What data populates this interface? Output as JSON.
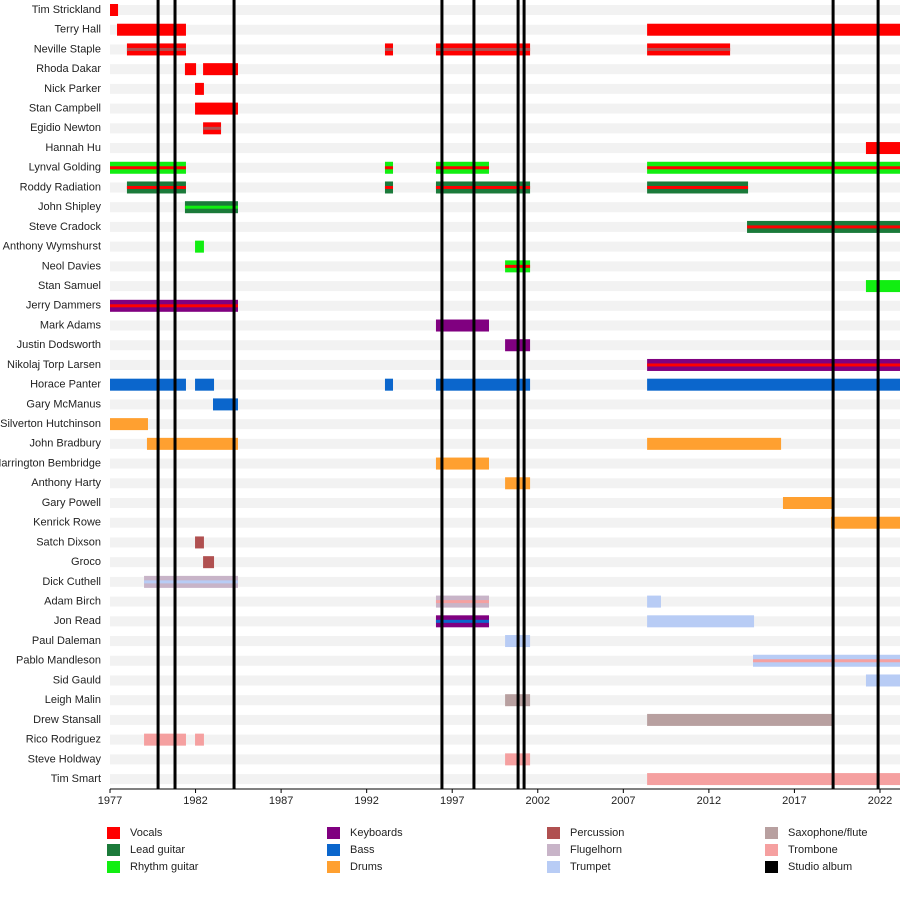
{
  "chart_data": {
    "type": "timeline",
    "xlim": [
      1977,
      2023.17
    ],
    "xticks": [
      1977,
      1982,
      1987,
      1992,
      1997,
      2002,
      2007,
      2012,
      2017,
      2022
    ],
    "legend": [
      {
        "name": "Vocals",
        "color": "#ff0000"
      },
      {
        "name": "Lead guitar",
        "color": "#1b7a3a"
      },
      {
        "name": "Rhythm guitar",
        "color": "#11ee11"
      },
      {
        "name": "Keyboards",
        "color": "#800080"
      },
      {
        "name": "Bass",
        "color": "#0b66cc"
      },
      {
        "name": "Drums",
        "color": "#ffa030"
      },
      {
        "name": "Percussion",
        "color": "#b05050"
      },
      {
        "name": "Flugelhorn",
        "color": "#c8b4c8"
      },
      {
        "name": "Trumpet",
        "color": "#b8ccf5"
      },
      {
        "name": "Saxophone/flute",
        "color": "#b8a0a0"
      },
      {
        "name": "Trombone",
        "color": "#f5a0a0"
      },
      {
        "name": "Studio album",
        "color": "#000000"
      }
    ],
    "albums": [
      1979.81,
      1980.8,
      1984.25,
      1996.4,
      1998.27,
      2000.85,
      2001.2,
      2019.26,
      2021.89
    ],
    "members": [
      {
        "name": "Tim Strickland",
        "periods": [
          {
            "start": 1977.0,
            "end": 1977.47,
            "roles": [
              "Vocals"
            ]
          }
        ]
      },
      {
        "name": "Terry Hall",
        "periods": [
          {
            "start": 1977.41,
            "end": 1981.44,
            "roles": [
              "Vocals"
            ]
          },
          {
            "start": 2008.39,
            "end": 2023.17,
            "roles": [
              "Vocals"
            ]
          }
        ]
      },
      {
        "name": "Neville Staple",
        "periods": [
          {
            "start": 1977.99,
            "end": 1981.44,
            "roles": [
              "Vocals",
              "Percussion"
            ]
          },
          {
            "start": 1993.07,
            "end": 1993.54,
            "roles": [
              "Vocals",
              "Percussion"
            ]
          },
          {
            "start": 1996.05,
            "end": 2001.55,
            "roles": [
              "Vocals",
              "Percussion"
            ]
          },
          {
            "start": 2008.39,
            "end": 2013.24,
            "roles": [
              "Vocals",
              "Percussion"
            ]
          }
        ]
      },
      {
        "name": "Rhoda Dakar",
        "periods": [
          {
            "start": 1981.38,
            "end": 1982.03,
            "roles": [
              "Vocals"
            ]
          },
          {
            "start": 1982.44,
            "end": 1984.48,
            "roles": [
              "Vocals"
            ]
          }
        ]
      },
      {
        "name": "Nick Parker",
        "periods": [
          {
            "start": 1981.97,
            "end": 1982.49,
            "roles": [
              "Vocals"
            ]
          }
        ]
      },
      {
        "name": "Stan Campbell",
        "periods": [
          {
            "start": 1981.97,
            "end": 1984.48,
            "roles": [
              "Vocals"
            ]
          }
        ]
      },
      {
        "name": "Egidio Newton",
        "periods": [
          {
            "start": 1982.44,
            "end": 1983.49,
            "roles": [
              "Vocals",
              "Percussion"
            ]
          }
        ]
      },
      {
        "name": "Hannah Hu",
        "periods": [
          {
            "start": 2021.18,
            "end": 2023.17,
            "roles": [
              "Vocals"
            ]
          }
        ]
      },
      {
        "name": "Lynval Golding",
        "periods": [
          {
            "start": 1977.0,
            "end": 1981.44,
            "roles": [
              "Rhythm guitar",
              "Vocals"
            ]
          },
          {
            "start": 1993.07,
            "end": 1993.54,
            "roles": [
              "Rhythm guitar",
              "Vocals"
            ]
          },
          {
            "start": 1996.05,
            "end": 1999.15,
            "roles": [
              "Rhythm guitar",
              "Vocals"
            ]
          },
          {
            "start": 2008.39,
            "end": 2023.17,
            "roles": [
              "Rhythm guitar",
              "Vocals"
            ]
          }
        ]
      },
      {
        "name": "Roddy Radiation",
        "periods": [
          {
            "start": 1977.99,
            "end": 1981.44,
            "roles": [
              "Lead guitar",
              "Vocals"
            ]
          },
          {
            "start": 1993.07,
            "end": 1993.54,
            "roles": [
              "Lead guitar",
              "Vocals"
            ]
          },
          {
            "start": 1996.05,
            "end": 2001.55,
            "roles": [
              "Lead guitar",
              "Vocals"
            ]
          },
          {
            "start": 2008.39,
            "end": 2014.29,
            "roles": [
              "Lead guitar",
              "Vocals"
            ]
          }
        ]
      },
      {
        "name": "John Shipley",
        "periods": [
          {
            "start": 1981.38,
            "end": 1984.48,
            "roles": [
              "Lead guitar",
              "Rhythm guitar"
            ]
          }
        ]
      },
      {
        "name": "Steve Cradock",
        "periods": [
          {
            "start": 2014.23,
            "end": 2023.17,
            "roles": [
              "Lead guitar",
              "Vocals"
            ]
          }
        ]
      },
      {
        "name": "Anthony Wymshurst",
        "periods": [
          {
            "start": 1981.97,
            "end": 1982.49,
            "roles": [
              "Rhythm guitar"
            ]
          }
        ]
      },
      {
        "name": "Neol Davies",
        "periods": [
          {
            "start": 2000.09,
            "end": 2001.55,
            "roles": [
              "Rhythm guitar",
              "Vocals"
            ]
          }
        ]
      },
      {
        "name": "Stan Samuel",
        "periods": [
          {
            "start": 2021.18,
            "end": 2023.17,
            "roles": [
              "Rhythm guitar"
            ]
          }
        ]
      },
      {
        "name": "Jerry Dammers",
        "periods": [
          {
            "start": 1977.0,
            "end": 1984.48,
            "roles": [
              "Keyboards",
              "Vocals"
            ]
          }
        ]
      },
      {
        "name": "Mark Adams",
        "periods": [
          {
            "start": 1996.05,
            "end": 1999.15,
            "roles": [
              "Keyboards"
            ]
          }
        ]
      },
      {
        "name": "Justin Dodsworth",
        "periods": [
          {
            "start": 2000.09,
            "end": 2001.55,
            "roles": [
              "Keyboards"
            ]
          }
        ]
      },
      {
        "name": "Nikolaj Torp Larsen",
        "periods": [
          {
            "start": 2008.39,
            "end": 2023.17,
            "roles": [
              "Keyboards",
              "Vocals"
            ]
          }
        ]
      },
      {
        "name": "Horace Panter",
        "periods": [
          {
            "start": 1977.0,
            "end": 1981.44,
            "roles": [
              "Bass"
            ]
          },
          {
            "start": 1981.97,
            "end": 1983.08,
            "roles": [
              "Bass"
            ]
          },
          {
            "start": 1993.07,
            "end": 1993.54,
            "roles": [
              "Bass"
            ]
          },
          {
            "start": 1996.05,
            "end": 2001.55,
            "roles": [
              "Bass"
            ]
          },
          {
            "start": 2008.39,
            "end": 2023.17,
            "roles": [
              "Bass"
            ]
          }
        ]
      },
      {
        "name": "Gary McManus",
        "periods": [
          {
            "start": 1983.02,
            "end": 1984.48,
            "roles": [
              "Bass"
            ]
          }
        ]
      },
      {
        "name": "Silverton Hutchinson",
        "periods": [
          {
            "start": 1977.0,
            "end": 1979.22,
            "roles": [
              "Drums"
            ]
          }
        ]
      },
      {
        "name": "John Bradbury",
        "periods": [
          {
            "start": 1979.16,
            "end": 1984.48,
            "roles": [
              "Drums"
            ]
          },
          {
            "start": 2008.39,
            "end": 2016.22,
            "roles": [
              "Drums"
            ]
          }
        ]
      },
      {
        "name": "Harrington Bembridge",
        "periods": [
          {
            "start": 1996.05,
            "end": 1999.15,
            "roles": [
              "Drums"
            ]
          }
        ]
      },
      {
        "name": "Anthony Harty",
        "periods": [
          {
            "start": 2000.09,
            "end": 2001.55,
            "roles": [
              "Drums"
            ]
          }
        ]
      },
      {
        "name": "Gary Powell",
        "periods": [
          {
            "start": 2016.33,
            "end": 2019.26,
            "roles": [
              "Drums"
            ]
          }
        ]
      },
      {
        "name": "Kenrick Rowe",
        "periods": [
          {
            "start": 2019.14,
            "end": 2023.17,
            "roles": [
              "Drums"
            ]
          }
        ]
      },
      {
        "name": "Satch Dixson",
        "periods": [
          {
            "start": 1981.97,
            "end": 1982.49,
            "roles": [
              "Percussion"
            ]
          }
        ]
      },
      {
        "name": "Groco",
        "periods": [
          {
            "start": 1982.44,
            "end": 1983.08,
            "roles": [
              "Percussion"
            ]
          }
        ]
      },
      {
        "name": "Dick Cuthell",
        "periods": [
          {
            "start": 1978.99,
            "end": 1984.48,
            "roles": [
              "Flugelhorn",
              "Trumpet"
            ]
          }
        ]
      },
      {
        "name": "Adam Birch",
        "periods": [
          {
            "start": 1996.05,
            "end": 1999.15,
            "roles": [
              "Flugelhorn",
              "Trombone"
            ]
          },
          {
            "start": 2008.39,
            "end": 2009.2,
            "roles": [
              "Trumpet"
            ]
          }
        ]
      },
      {
        "name": "Jon Read",
        "periods": [
          {
            "start": 1996.05,
            "end": 1999.15,
            "roles": [
              "Keyboards",
              "Bass"
            ]
          },
          {
            "start": 2008.39,
            "end": 2014.64,
            "roles": [
              "Trumpet"
            ]
          }
        ]
      },
      {
        "name": "Paul Daleman",
        "periods": [
          {
            "start": 2000.09,
            "end": 2001.55,
            "roles": [
              "Trumpet"
            ]
          }
        ]
      },
      {
        "name": "Pablo Mandleson",
        "periods": [
          {
            "start": 2014.58,
            "end": 2023.17,
            "roles": [
              "Trumpet",
              "Trombone"
            ]
          }
        ]
      },
      {
        "name": "Sid Gauld",
        "periods": [
          {
            "start": 2021.18,
            "end": 2023.17,
            "roles": [
              "Trumpet"
            ]
          }
        ]
      },
      {
        "name": "Leigh Malin",
        "periods": [
          {
            "start": 2000.09,
            "end": 2001.55,
            "roles": [
              "Saxophone/flute"
            ]
          }
        ]
      },
      {
        "name": "Drew Stansall",
        "periods": [
          {
            "start": 2008.39,
            "end": 2019.26,
            "roles": [
              "Saxophone/flute"
            ]
          }
        ]
      },
      {
        "name": "Rico Rodriguez",
        "periods": [
          {
            "start": 1978.99,
            "end": 1981.44,
            "roles": [
              "Trombone"
            ]
          },
          {
            "start": 1981.97,
            "end": 1982.49,
            "roles": [
              "Trombone"
            ]
          }
        ]
      },
      {
        "name": "Steve Holdway",
        "periods": [
          {
            "start": 2000.09,
            "end": 2001.55,
            "roles": [
              "Trombone"
            ]
          }
        ]
      },
      {
        "name": "Tim Smart",
        "periods": [
          {
            "start": 2008.39,
            "end": 2023.17,
            "roles": [
              "Trombone"
            ]
          }
        ]
      }
    ]
  }
}
